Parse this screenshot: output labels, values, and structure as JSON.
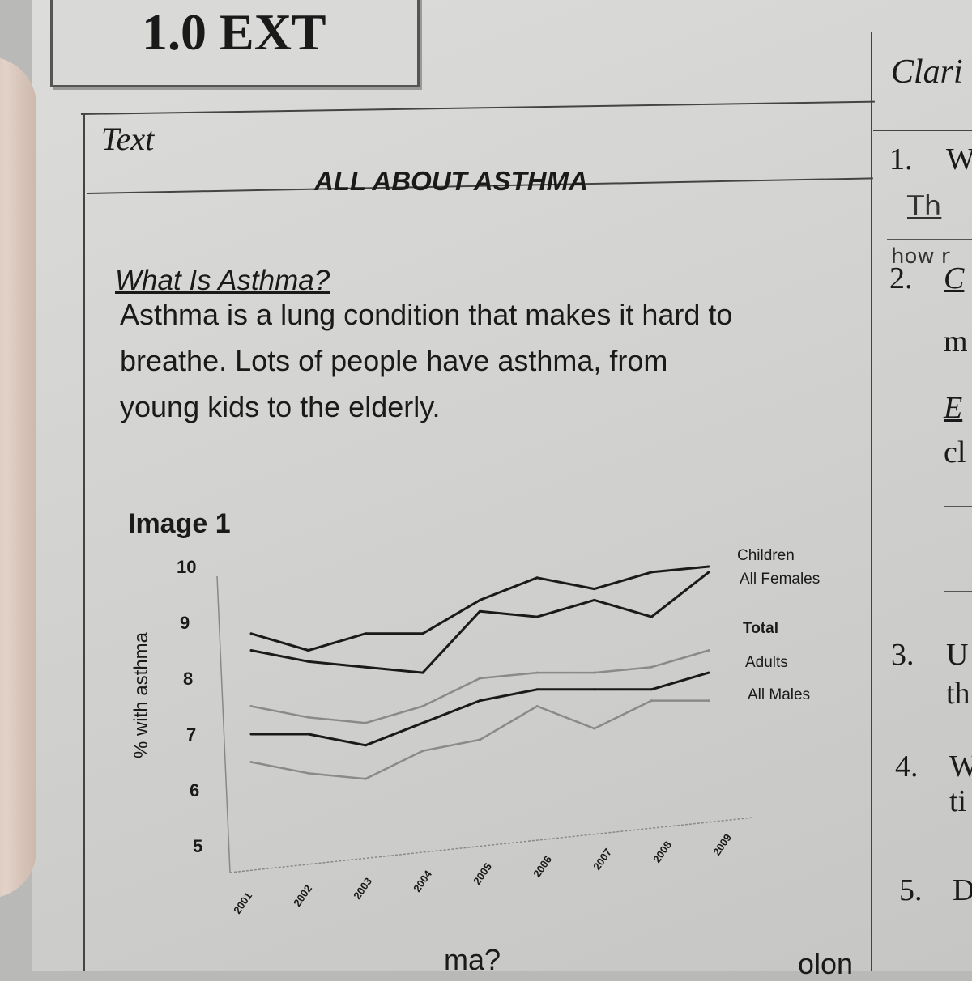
{
  "header": {
    "box_title": "1.0 EXT",
    "left_label": "Text",
    "right_label": "Clari"
  },
  "article": {
    "title": "ALL ABOUT ASTHMA",
    "subheading": "What Is Asthma?",
    "paragraph_lines": [
      "Asthma is a lung condition that makes it hard to",
      "breathe. Lots of people have asthma, from",
      "young kids to the elderly."
    ],
    "image_label": "Image 1"
  },
  "chart_data": {
    "type": "line",
    "ylabel": "% with asthma",
    "ylim": [
      5,
      10
    ],
    "yticks": [
      "10",
      "9",
      "8",
      "7",
      "6",
      "5"
    ],
    "x": [
      "2001",
      "2002",
      "2003",
      "2004",
      "2005",
      "2006",
      "2007",
      "2008",
      "2009"
    ],
    "series": [
      {
        "name": "Children",
        "values": [
          8.8,
          8.5,
          8.8,
          8.8,
          9.4,
          9.8,
          9.6,
          9.9,
          10.0
        ],
        "color": "#1a1a1a"
      },
      {
        "name": "All Females",
        "values": [
          8.5,
          8.3,
          8.2,
          8.1,
          9.2,
          9.1,
          9.4,
          9.1,
          9.9
        ],
        "color": "#1a1a1a"
      },
      {
        "name": "Total",
        "values": [
          7.5,
          7.3,
          7.2,
          7.5,
          8.0,
          8.1,
          8.1,
          8.2,
          8.5
        ],
        "color": "#8a8a8a"
      },
      {
        "name": "Adults",
        "values": [
          7.0,
          7.0,
          6.8,
          7.2,
          7.6,
          7.8,
          7.8,
          7.8,
          8.1
        ],
        "color": "#1a1a1a"
      },
      {
        "name": "All Males",
        "values": [
          6.5,
          6.3,
          6.2,
          6.7,
          6.9,
          7.5,
          7.1,
          7.6,
          7.6
        ],
        "color": "#8a8a8a"
      }
    ]
  },
  "right_column": {
    "items": [
      {
        "num": "1.",
        "text": "W"
      },
      {
        "num": "2.",
        "text": "C"
      },
      {
        "num": "3.",
        "text": "U"
      },
      {
        "num": "4.",
        "text": "W"
      },
      {
        "num": "5.",
        "text": "D"
      }
    ],
    "fragments": [
      "m",
      "E",
      "cl",
      "th",
      "ti"
    ],
    "handwriting": [
      "Th",
      "how r"
    ]
  },
  "bottom_fragments": [
    "ma?",
    "olon"
  ]
}
